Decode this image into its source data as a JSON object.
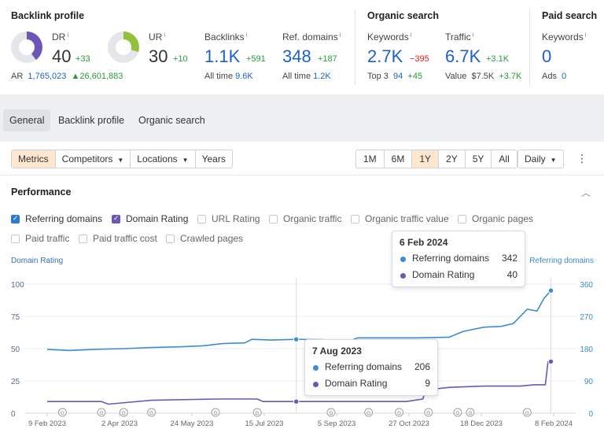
{
  "backlink_profile": {
    "title": "Backlink profile",
    "dr": {
      "label": "DR",
      "value": "40",
      "delta": "+33",
      "fill_fraction": 0.4
    },
    "ur": {
      "label": "UR",
      "value": "30",
      "delta": "+10",
      "fill_fraction": 0.3
    },
    "backlinks": {
      "label": "Backlinks",
      "value": "1.1K",
      "delta": "+591",
      "sub_label": "All time",
      "sub_value": "9.6K"
    },
    "ref_domains": {
      "label": "Ref. domains",
      "value": "348",
      "delta": "+187",
      "sub_label": "All time",
      "sub_value": "1.2K"
    },
    "ar": {
      "label": "AR",
      "value": "1,765,023",
      "delta": "▲26,601,883"
    }
  },
  "organic_search": {
    "title": "Organic search",
    "keywords": {
      "label": "Keywords",
      "value": "2.7K",
      "delta": "−395",
      "sub_label": "Top 3",
      "sub_value": "94",
      "sub_delta": "+45"
    },
    "traffic": {
      "label": "Traffic",
      "value": "6.7K",
      "delta": "+3.1K",
      "sub_label": "Value",
      "sub_value": "$7.5K",
      "sub_delta": "+3.7K"
    }
  },
  "paid_search": {
    "title": "Paid search",
    "keywords": {
      "label": "Keywords",
      "value": "0",
      "sub_label": "Ads",
      "sub_value": "0"
    }
  },
  "tabs": [
    "General",
    "Backlink profile",
    "Organic search"
  ],
  "toolbar": {
    "left": [
      "Metrics",
      "Competitors",
      "Locations",
      "Years"
    ],
    "ranges": [
      "1M",
      "6M",
      "1Y",
      "2Y",
      "5Y",
      "All"
    ],
    "interval": "Daily",
    "more_icon": "more-vertical-icon"
  },
  "performance": {
    "title": "Performance",
    "collapse_icon": "chevron-up-icon",
    "checkboxes": [
      {
        "label": "Referring domains",
        "checked": true,
        "color": "#2c7bd3"
      },
      {
        "label": "Domain Rating",
        "checked": true,
        "color": "#6e56b8"
      },
      {
        "label": "URL Rating",
        "checked": false
      },
      {
        "label": "Organic traffic",
        "checked": false
      },
      {
        "label": "Organic traffic value",
        "checked": false
      },
      {
        "label": "Organic pages",
        "checked": false
      },
      {
        "label": "Paid traffic",
        "checked": false
      },
      {
        "label": "Paid traffic cost",
        "checked": false
      },
      {
        "label": "Crawled pages",
        "checked": false
      }
    ]
  },
  "chart_data": {
    "type": "line",
    "left_axis_label": "Domain Rating",
    "right_axis_label": "Referring domains",
    "left_ticks": [
      "100",
      "75",
      "50",
      "25",
      "0"
    ],
    "right_ticks": [
      "360",
      "270",
      "180",
      "90",
      "0"
    ],
    "ylim_left": [
      0,
      100
    ],
    "ylim_right": [
      0,
      360
    ],
    "x_ticks": [
      "9 Feb 2023",
      "2 Apr 2023",
      "24 May 2023",
      "15 Jul 2023",
      "5 Sep 2023",
      "27 Oct 2023",
      "18 Dec 2023",
      "8 Feb 2024"
    ],
    "grid": true,
    "series": [
      {
        "name": "Referring domains",
        "color": "#3d8bd1",
        "axis": "right",
        "points": [
          [
            "2023-02-09",
            178
          ],
          [
            "2023-02-25",
            175
          ],
          [
            "2023-03-15",
            178
          ],
          [
            "2023-04-05",
            180
          ],
          [
            "2023-04-25",
            183
          ],
          [
            "2023-05-15",
            185
          ],
          [
            "2023-06-01",
            188
          ],
          [
            "2023-06-15",
            194
          ],
          [
            "2023-07-01",
            196
          ],
          [
            "2023-07-06",
            206
          ],
          [
            "2023-07-20",
            204
          ],
          [
            "2023-08-07",
            206
          ],
          [
            "2023-08-25",
            205
          ],
          [
            "2023-09-15",
            202
          ],
          [
            "2023-09-20",
            210
          ],
          [
            "2023-10-10",
            210
          ],
          [
            "2023-11-01",
            210
          ],
          [
            "2023-11-25",
            212
          ],
          [
            "2023-12-05",
            228
          ],
          [
            "2023-12-20",
            240
          ],
          [
            "2024-01-01",
            242
          ],
          [
            "2024-01-10",
            250
          ],
          [
            "2024-01-20",
            290
          ],
          [
            "2024-01-27",
            285
          ],
          [
            "2024-02-01",
            320
          ],
          [
            "2024-02-06",
            342
          ]
        ]
      },
      {
        "name": "Domain Rating",
        "color": "#6e56b8",
        "axis": "left",
        "points": [
          [
            "2023-02-09",
            9
          ],
          [
            "2023-03-20",
            9
          ],
          [
            "2023-03-25",
            7
          ],
          [
            "2023-04-25",
            10
          ],
          [
            "2023-06-10",
            11
          ],
          [
            "2023-07-10",
            11
          ],
          [
            "2023-07-14",
            9
          ],
          [
            "2023-08-07",
            9
          ],
          [
            "2023-09-15",
            9
          ],
          [
            "2023-10-25",
            9
          ],
          [
            "2023-11-06",
            11
          ],
          [
            "2023-11-08",
            18
          ],
          [
            "2023-11-25",
            20
          ],
          [
            "2023-12-20",
            21
          ],
          [
            "2024-01-15",
            21
          ],
          [
            "2024-01-25",
            22
          ],
          [
            "2024-02-02",
            22
          ],
          [
            "2024-02-04",
            40
          ],
          [
            "2024-02-06",
            40
          ]
        ]
      }
    ],
    "annotation_markers": [
      "2023-02-20",
      "2023-03-20",
      "2023-04-05",
      "2023-04-25",
      "2023-06-10",
      "2023-07-10",
      "2023-09-01",
      "2023-09-28",
      "2023-10-20",
      "2023-11-10",
      "2023-12-01",
      "2023-12-10",
      "2024-01-20"
    ],
    "tooltips": [
      {
        "date": "6 Feb 2024",
        "rows": [
          {
            "name": "Referring domains",
            "value": "342",
            "color": "#3d8bd1"
          },
          {
            "name": "Domain Rating",
            "value": "40",
            "color": "#6e56b8"
          }
        ]
      },
      {
        "date": "7 Aug 2023",
        "rows": [
          {
            "name": "Referring domains",
            "value": "206",
            "color": "#3d8bd1"
          },
          {
            "name": "Domain Rating",
            "value": "9",
            "color": "#6e56b8"
          }
        ]
      }
    ],
    "hover_dates": [
      "2023-08-07",
      "2024-02-06"
    ]
  }
}
